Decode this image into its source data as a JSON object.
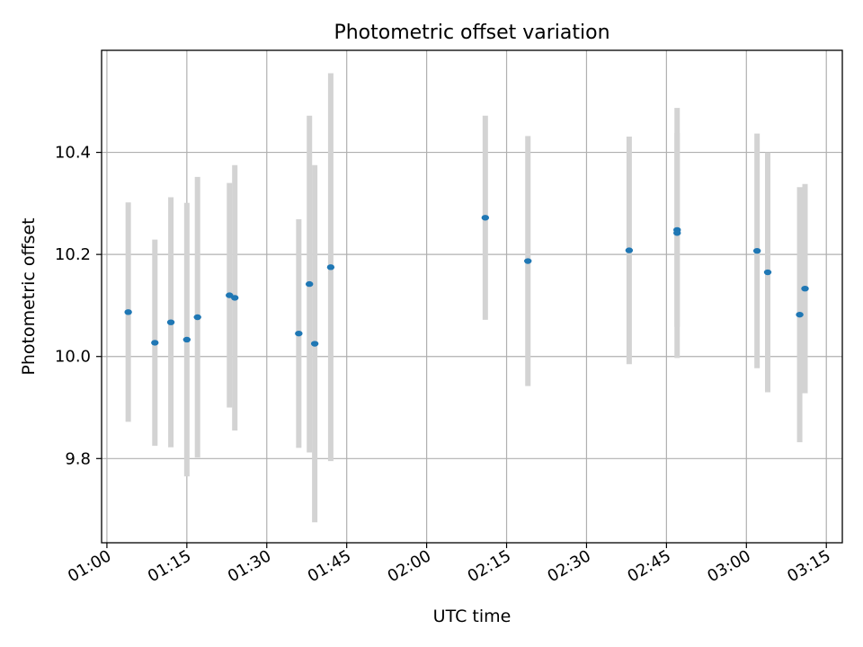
{
  "chart_data": {
    "type": "scatter",
    "title": "Photometric offset variation",
    "xlabel": "UTC time",
    "ylabel": "Photometric offset",
    "x_is_time": true,
    "xlim": [
      "00:59",
      "03:18"
    ],
    "ylim": [
      9.635,
      10.6
    ],
    "x_ticks": [
      "01:00",
      "01:15",
      "01:30",
      "01:45",
      "02:00",
      "02:15",
      "02:30",
      "02:45",
      "03:00",
      "03:15"
    ],
    "y_ticks": [
      9.8,
      10.0,
      10.2,
      10.4
    ],
    "grid": true,
    "colors": {
      "point": "#1f77b4",
      "errorbar": "#d3d3d3",
      "grid": "#b0b0b0"
    },
    "series": [
      {
        "points": [
          {
            "x": "01:04",
            "y": 10.087,
            "err": 0.215
          },
          {
            "x": "01:09",
            "y": 10.027,
            "err": 0.202
          },
          {
            "x": "01:12",
            "y": 10.067,
            "err": 0.245
          },
          {
            "x": "01:15",
            "y": 10.033,
            "err": 0.268
          },
          {
            "x": "01:17",
            "y": 10.077,
            "err": 0.275
          },
          {
            "x": "01:23",
            "y": 10.12,
            "err": 0.22
          },
          {
            "x": "01:24",
            "y": 10.115,
            "err": 0.26
          },
          {
            "x": "01:36",
            "y": 10.045,
            "err": 0.224
          },
          {
            "x": "01:38",
            "y": 10.142,
            "err": 0.33
          },
          {
            "x": "01:39",
            "y": 10.025,
            "err": 0.35
          },
          {
            "x": "01:42",
            "y": 10.175,
            "err": 0.38
          },
          {
            "x": "02:11",
            "y": 10.272,
            "err": 0.2
          },
          {
            "x": "02:19",
            "y": 10.187,
            "err": 0.245
          },
          {
            "x": "02:38",
            "y": 10.208,
            "err": 0.223
          },
          {
            "x": "02:47",
            "y": 10.248,
            "err": 0.19
          },
          {
            "x": "02:47",
            "y": 10.242,
            "err": 0.245
          },
          {
            "x": "03:02",
            "y": 10.207,
            "err": 0.23
          },
          {
            "x": "03:04",
            "y": 10.165,
            "err": 0.235
          },
          {
            "x": "03:10",
            "y": 10.082,
            "err": 0.25
          },
          {
            "x": "03:11",
            "y": 10.133,
            "err": 0.205
          }
        ]
      }
    ]
  }
}
